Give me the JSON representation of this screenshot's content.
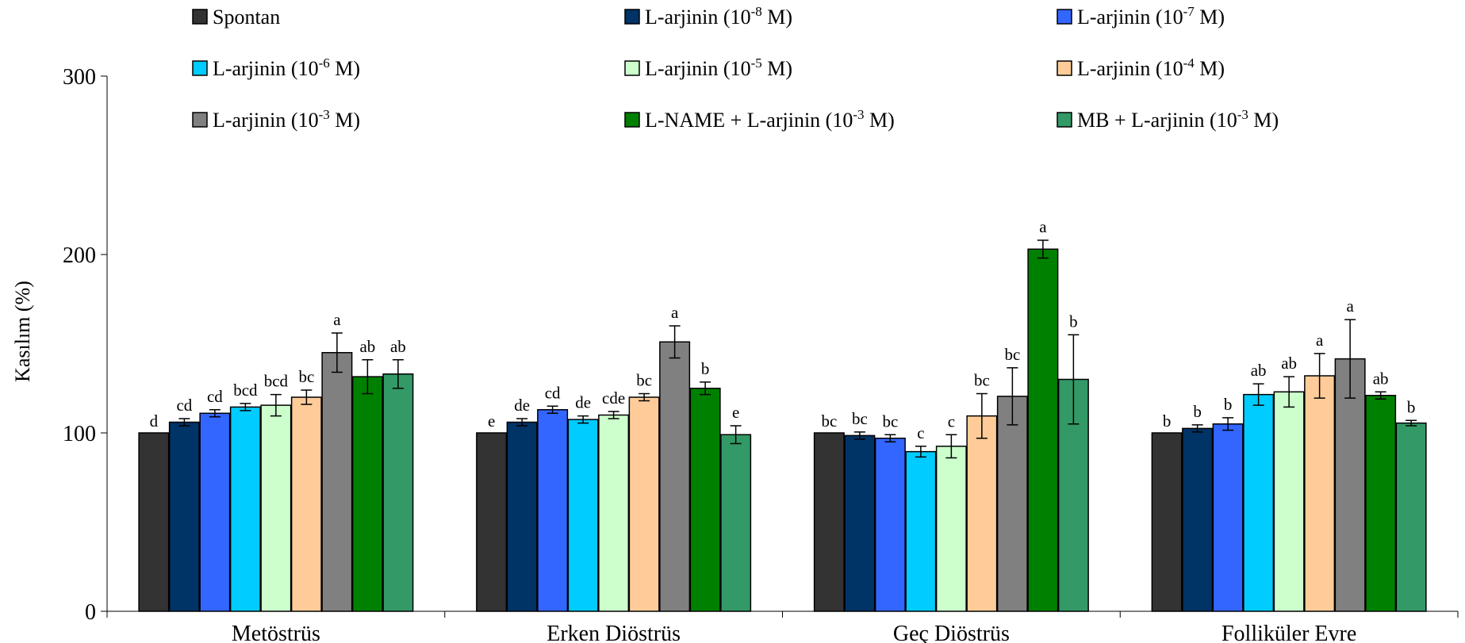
{
  "chart_data": {
    "type": "bar",
    "ylabel": "Kasılım (%)",
    "ylim": [
      0,
      300
    ],
    "yticks": [
      "0",
      "100",
      "200",
      "300"
    ],
    "grid": false,
    "legend_position": "top",
    "categories": [
      "Metöstrüs",
      "Erken Diöstrüs",
      "Geç Diöstrüs",
      "Folliküler Evre"
    ],
    "series": [
      {
        "name": "Spontan",
        "color": "#333333",
        "values": [
          100,
          100,
          100,
          100
        ],
        "errors": [
          0,
          0,
          0,
          0
        ],
        "labels": [
          "d",
          "e",
          "bc",
          "b"
        ]
      },
      {
        "name": "L-arjinin (10-8 M)",
        "legend_text": "L-arjinin (10",
        "legend_exp": "-8",
        "legend_tail": " M)",
        "color": "#003366",
        "values": [
          106,
          106,
          98.5,
          102.5
        ],
        "errors": [
          2,
          2,
          2,
          2
        ],
        "labels": [
          "cd",
          "de",
          "bc",
          "b"
        ]
      },
      {
        "name": "L-arjinin (10-7 M)",
        "legend_text": "L-arjinin (10",
        "legend_exp": "-7",
        "legend_tail": " M)",
        "color": "#3366FF",
        "values": [
          111,
          113,
          97,
          105
        ],
        "errors": [
          2,
          2,
          2,
          3.5
        ],
        "labels": [
          "cd",
          "cd",
          "bc",
          "b"
        ]
      },
      {
        "name": "L-arjinin (10-6 M)",
        "legend_text": "L-arjinin (10",
        "legend_exp": "-6",
        "legend_tail": " M)",
        "color": "#00CCFF",
        "values": [
          114.5,
          107.5,
          89.5,
          121.5
        ],
        "errors": [
          2,
          2,
          3,
          6
        ],
        "labels": [
          "bcd",
          "de",
          "c",
          "ab"
        ]
      },
      {
        "name": "L-arjinin (10-5 M)",
        "legend_text": "L-arjinin (10",
        "legend_exp": "-5",
        "legend_tail": " M)",
        "color": "#CCFFCC",
        "values": [
          115.5,
          110,
          92.5,
          123
        ],
        "errors": [
          6,
          2,
          6.5,
          8.5
        ],
        "labels": [
          "bcd",
          "cde",
          "c",
          "ab"
        ]
      },
      {
        "name": "L-arjinin (10-4 M)",
        "legend_text": "L-arjinin (10",
        "legend_exp": "-4",
        "legend_tail": " M)",
        "color": "#FFCC99",
        "values": [
          120,
          120,
          109.5,
          132
        ],
        "errors": [
          4,
          2,
          12.5,
          12.5
        ],
        "labels": [
          "bc",
          "bc",
          "bc",
          "a"
        ]
      },
      {
        "name": "L-arjinin (10-3 M)",
        "legend_text": "L-arjinin (10",
        "legend_exp": "-3",
        "legend_tail": "  M)",
        "color": "#808080",
        "values": [
          145,
          151,
          120.5,
          141.5
        ],
        "errors": [
          11,
          9,
          16,
          22
        ],
        "labels": [
          "a",
          "a",
          "bc",
          "a"
        ]
      },
      {
        "name": "L-NAME + L-arjinin (10-3 M)",
        "legend_text": "L-NAME + L-arjinin (10",
        "legend_exp": "-3",
        "legend_tail": "  M)",
        "color": "#008000",
        "values": [
          131.5,
          125,
          203,
          121
        ],
        "errors": [
          9.5,
          3.5,
          5,
          2
        ],
        "labels": [
          "ab",
          "b",
          "a",
          "ab"
        ]
      },
      {
        "name": "MB + L-arjinin (10-3 M)",
        "legend_text": "MB + L-arjinin (10",
        "legend_exp": "-3",
        "legend_tail": " M)",
        "color": "#339966",
        "values": [
          133,
          99,
          130,
          105.5
        ],
        "errors": [
          8,
          5,
          25,
          1.5
        ],
        "labels": [
          "ab",
          "e",
          "b",
          "b"
        ]
      }
    ]
  }
}
